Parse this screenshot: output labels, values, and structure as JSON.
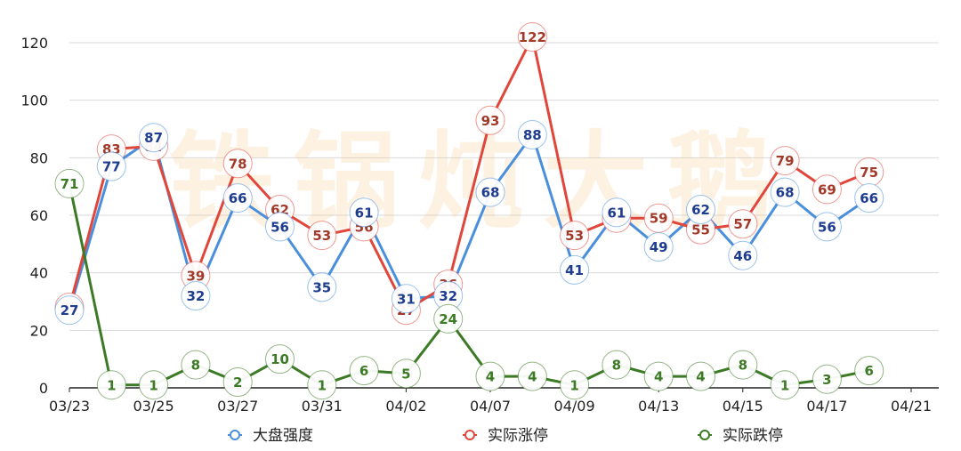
{
  "chart_data": {
    "type": "line",
    "categories": [
      "03/23",
      "03/24",
      "03/25",
      "03/26",
      "03/27",
      "03/28",
      "03/31",
      "04/01",
      "04/02",
      "04/03",
      "04/07",
      "04/08",
      "04/09",
      "04/10",
      "04/13",
      "04/14",
      "04/15",
      "04/16",
      "04/17",
      "04/18"
    ],
    "x_tick_labels": [
      "03/23",
      "03/25",
      "03/27",
      "03/31",
      "04/02",
      "04/07",
      "04/09",
      "04/13",
      "04/15",
      "04/17",
      "04/21"
    ],
    "ylim": [
      0,
      120
    ],
    "y_ticks": [
      0,
      20,
      40,
      60,
      80,
      100,
      120
    ],
    "grid": true,
    "legend_position": "bottom",
    "series": [
      {
        "name": "大盘强度",
        "color": "#4a8fdc",
        "label_color": "#1f3d8f",
        "values": [
          27,
          77,
          87,
          32,
          66,
          56,
          35,
          61,
          31,
          32,
          68,
          88,
          41,
          61,
          49,
          62,
          46,
          68,
          56,
          66
        ]
      },
      {
        "name": "实际涨停",
        "color": "#e0463a",
        "label_color": "#a23a2a",
        "values": [
          28,
          83,
          84,
          39,
          78,
          62,
          53,
          56,
          27,
          36,
          93,
          122,
          53,
          59,
          59,
          55,
          57,
          79,
          69,
          75
        ]
      },
      {
        "name": "实际跌停",
        "color": "#3c7a25",
        "label_color": "#3c7a25",
        "values": [
          71,
          1,
          1,
          8,
          2,
          10,
          1,
          6,
          5,
          24,
          4,
          4,
          1,
          8,
          4,
          4,
          8,
          1,
          3,
          6
        ]
      }
    ],
    "watermark": "铁锅炖大鹅"
  }
}
